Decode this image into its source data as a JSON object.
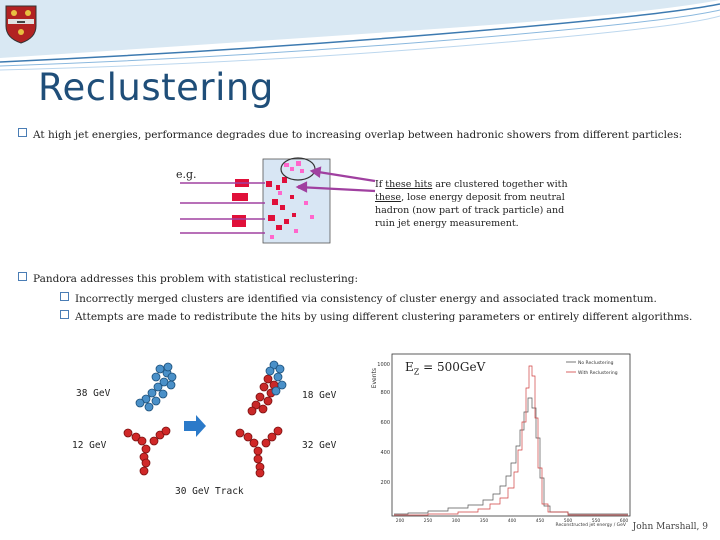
{
  "slide": {
    "title": "Reclustering",
    "bullet1": "At high jet energies, performance degrades due to increasing overlap between hadronic showers from different particles:",
    "eg_label": "e.g.",
    "note": {
      "part1": "If ",
      "these_hits": "these hits",
      "part2": " are clustered together with ",
      "these": "these",
      "part3": ", lose energy deposit from neutral hadron (now part of track particle) and ruin jet energy measurement."
    },
    "bullet2": "Pandora addresses this problem with statistical reclustering:",
    "bullet2a": "Incorrectly merged clusters are identified via consistency of cluster energy and associated track momentum.",
    "bullet2b": "Attempts are made to redistribute the hits by using different clustering parameters or entirely different algorithms.",
    "cluster_labels": [
      "38 GeV",
      "18 GeV",
      "12 GeV",
      "32 GeV",
      "30 GeV Track"
    ],
    "ez_label": "E",
    "ez_sub": "Z",
    "ez_value": " = 500GeV",
    "footer": "John Marshall, 9"
  },
  "plot": {
    "ylabel": "Events",
    "xlabel": "Reconstructed jet energy / GeV",
    "legend": [
      "No Reclustering",
      "With Reclustering"
    ],
    "yticks": [
      "200",
      "400",
      "600",
      "800",
      "1000"
    ],
    "xticks": [
      "200",
      "250",
      "300",
      "350",
      "400",
      "450",
      "500",
      "550",
      "600"
    ],
    "colors": {
      "no_reclustering": "#555555",
      "with_reclustering": "#d04040"
    }
  }
}
